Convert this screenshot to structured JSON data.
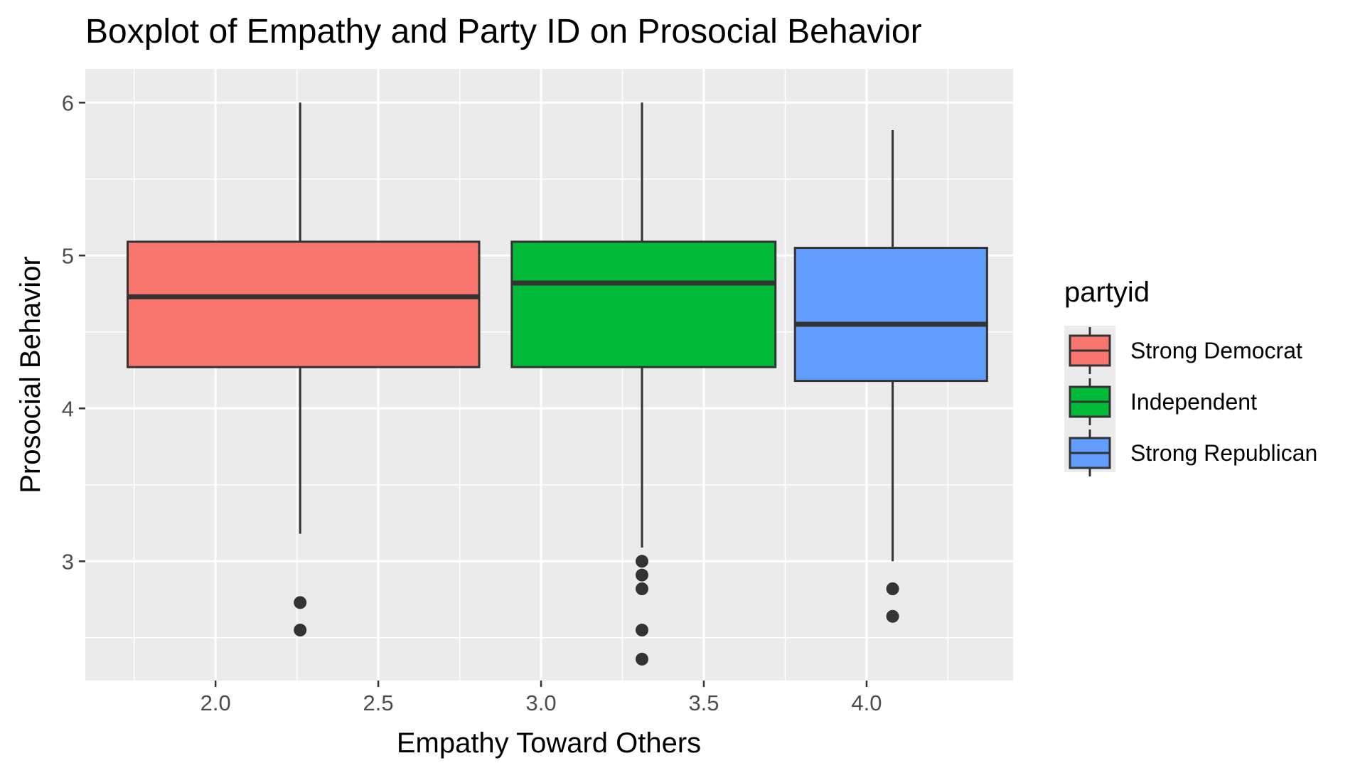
{
  "chart_data": {
    "type": "boxplot",
    "title": "Boxplot of Empathy and Party ID on Prosocial Behavior",
    "xlabel": "Empathy Toward Others",
    "ylabel": "Prosocial Behavior",
    "xlim": [
      1.6,
      4.45
    ],
    "ylim": [
      2.22,
      6.22
    ],
    "x_ticks": [
      2.0,
      2.5,
      3.0,
      3.5,
      4.0
    ],
    "x_tick_labels": [
      "2.0",
      "2.5",
      "3.0",
      "3.5",
      "4.0"
    ],
    "y_ticks": [
      3,
      4,
      5,
      6
    ],
    "y_tick_labels": [
      "3",
      "4",
      "5",
      "6"
    ],
    "grid": true,
    "legend": {
      "title": "partyid",
      "position": "right"
    },
    "series": [
      {
        "name": "Strong Democrat",
        "color": "#F8766D",
        "x_center": 2.26,
        "x_left": 1.73,
        "x_right": 2.81,
        "whisker_low": 3.18,
        "q1": 4.27,
        "median": 4.73,
        "q3": 5.09,
        "whisker_high": 6.0,
        "outliers": [
          2.73,
          2.55
        ]
      },
      {
        "name": "Independent",
        "color": "#00BA38",
        "x_center": 3.31,
        "x_left": 2.91,
        "x_right": 3.72,
        "whisker_low": 3.09,
        "q1": 4.27,
        "median": 4.82,
        "q3": 5.09,
        "whisker_high": 6.0,
        "outliers": [
          3.0,
          2.91,
          2.82,
          2.55,
          2.36
        ]
      },
      {
        "name": "Strong Republican",
        "color": "#619CFF",
        "x_center": 4.08,
        "x_left": 3.78,
        "x_right": 4.37,
        "whisker_low": 3.0,
        "q1": 4.18,
        "median": 4.55,
        "q3": 5.05,
        "whisker_high": 5.82,
        "outliers": [
          2.82,
          2.64
        ]
      }
    ]
  }
}
